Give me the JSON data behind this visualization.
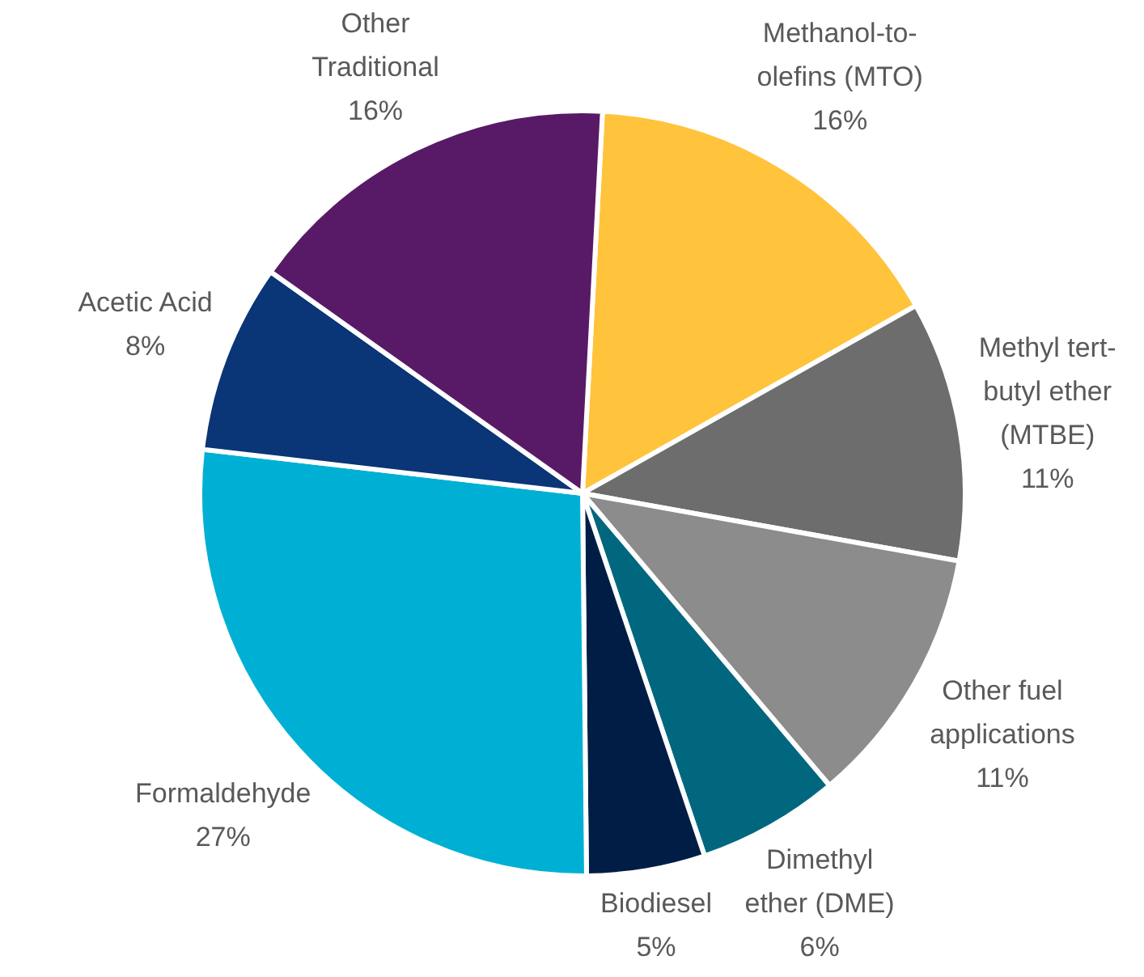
{
  "chart_data": {
    "type": "pie",
    "categories": [
      "Methanol-to-\nolefins (MTO)",
      "Methyl tert-\nbutyl ether\n(MTBE)",
      "Other fuel\napplications",
      "Dimethyl\nether (DME)",
      "Biodiesel",
      "Formaldehyde",
      "Acetic Acid",
      "Other\nTraditional"
    ],
    "values": [
      16,
      11,
      11,
      6,
      5,
      27,
      8,
      16
    ],
    "colors": [
      "#ffc33c",
      "#6d6d6d",
      "#8c8c8c",
      "#00677f",
      "#001e45",
      "#00b0d4",
      "#0a3576",
      "#581a66"
    ],
    "value_labels": [
      "16%",
      "11%",
      "11%",
      "6%",
      "5%",
      "27%",
      "8%",
      "16%"
    ],
    "legend": false
  }
}
